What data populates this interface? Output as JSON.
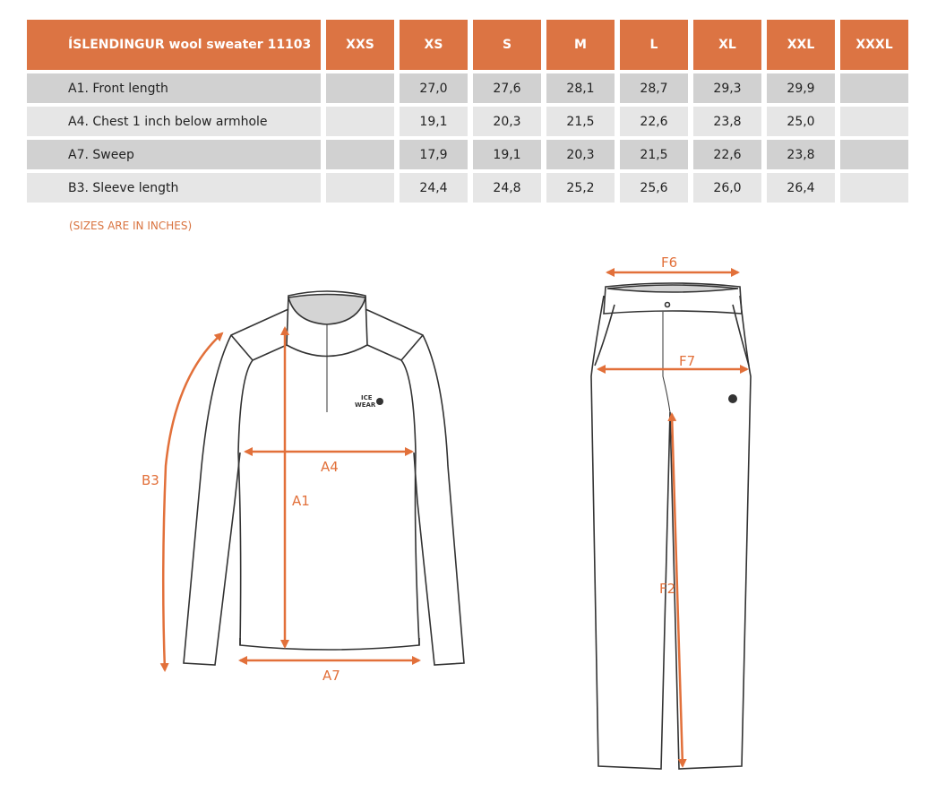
{
  "table": {
    "title": "ÍSLENDINGUR wool sweater 11103",
    "sizes": [
      "XXS",
      "XS",
      "S",
      "M",
      "L",
      "XL",
      "XXL",
      "XXXL"
    ],
    "rows": [
      {
        "label": "A1. Front length",
        "values": [
          "",
          "27,0",
          "27,6",
          "28,1",
          "28,7",
          "29,3",
          "29,9",
          ""
        ]
      },
      {
        "label": "A4. Chest 1 inch below armhole",
        "values": [
          "",
          "19,1",
          "20,3",
          "21,5",
          "22,6",
          "23,8",
          "25,0",
          ""
        ]
      },
      {
        "label": "A7. Sweep",
        "values": [
          "",
          "17,9",
          "19,1",
          "20,3",
          "21,5",
          "22,6",
          "23,8",
          ""
        ]
      },
      {
        "label": "B3. Sleeve length",
        "values": [
          "",
          "24,4",
          "24,8",
          "25,2",
          "25,6",
          "26,0",
          "26,4",
          ""
        ]
      }
    ]
  },
  "note": "(SIZES ARE IN INCHES)",
  "diagram": {
    "sweater_labels": {
      "a1": "A1",
      "a4": "A4",
      "a7": "A7",
      "b3": "B3"
    },
    "pants_labels": {
      "f6": "F6",
      "f7": "F7",
      "f2": "F2"
    },
    "logo_text": "ICE WEAR",
    "accent_color": "#e2703a"
  }
}
